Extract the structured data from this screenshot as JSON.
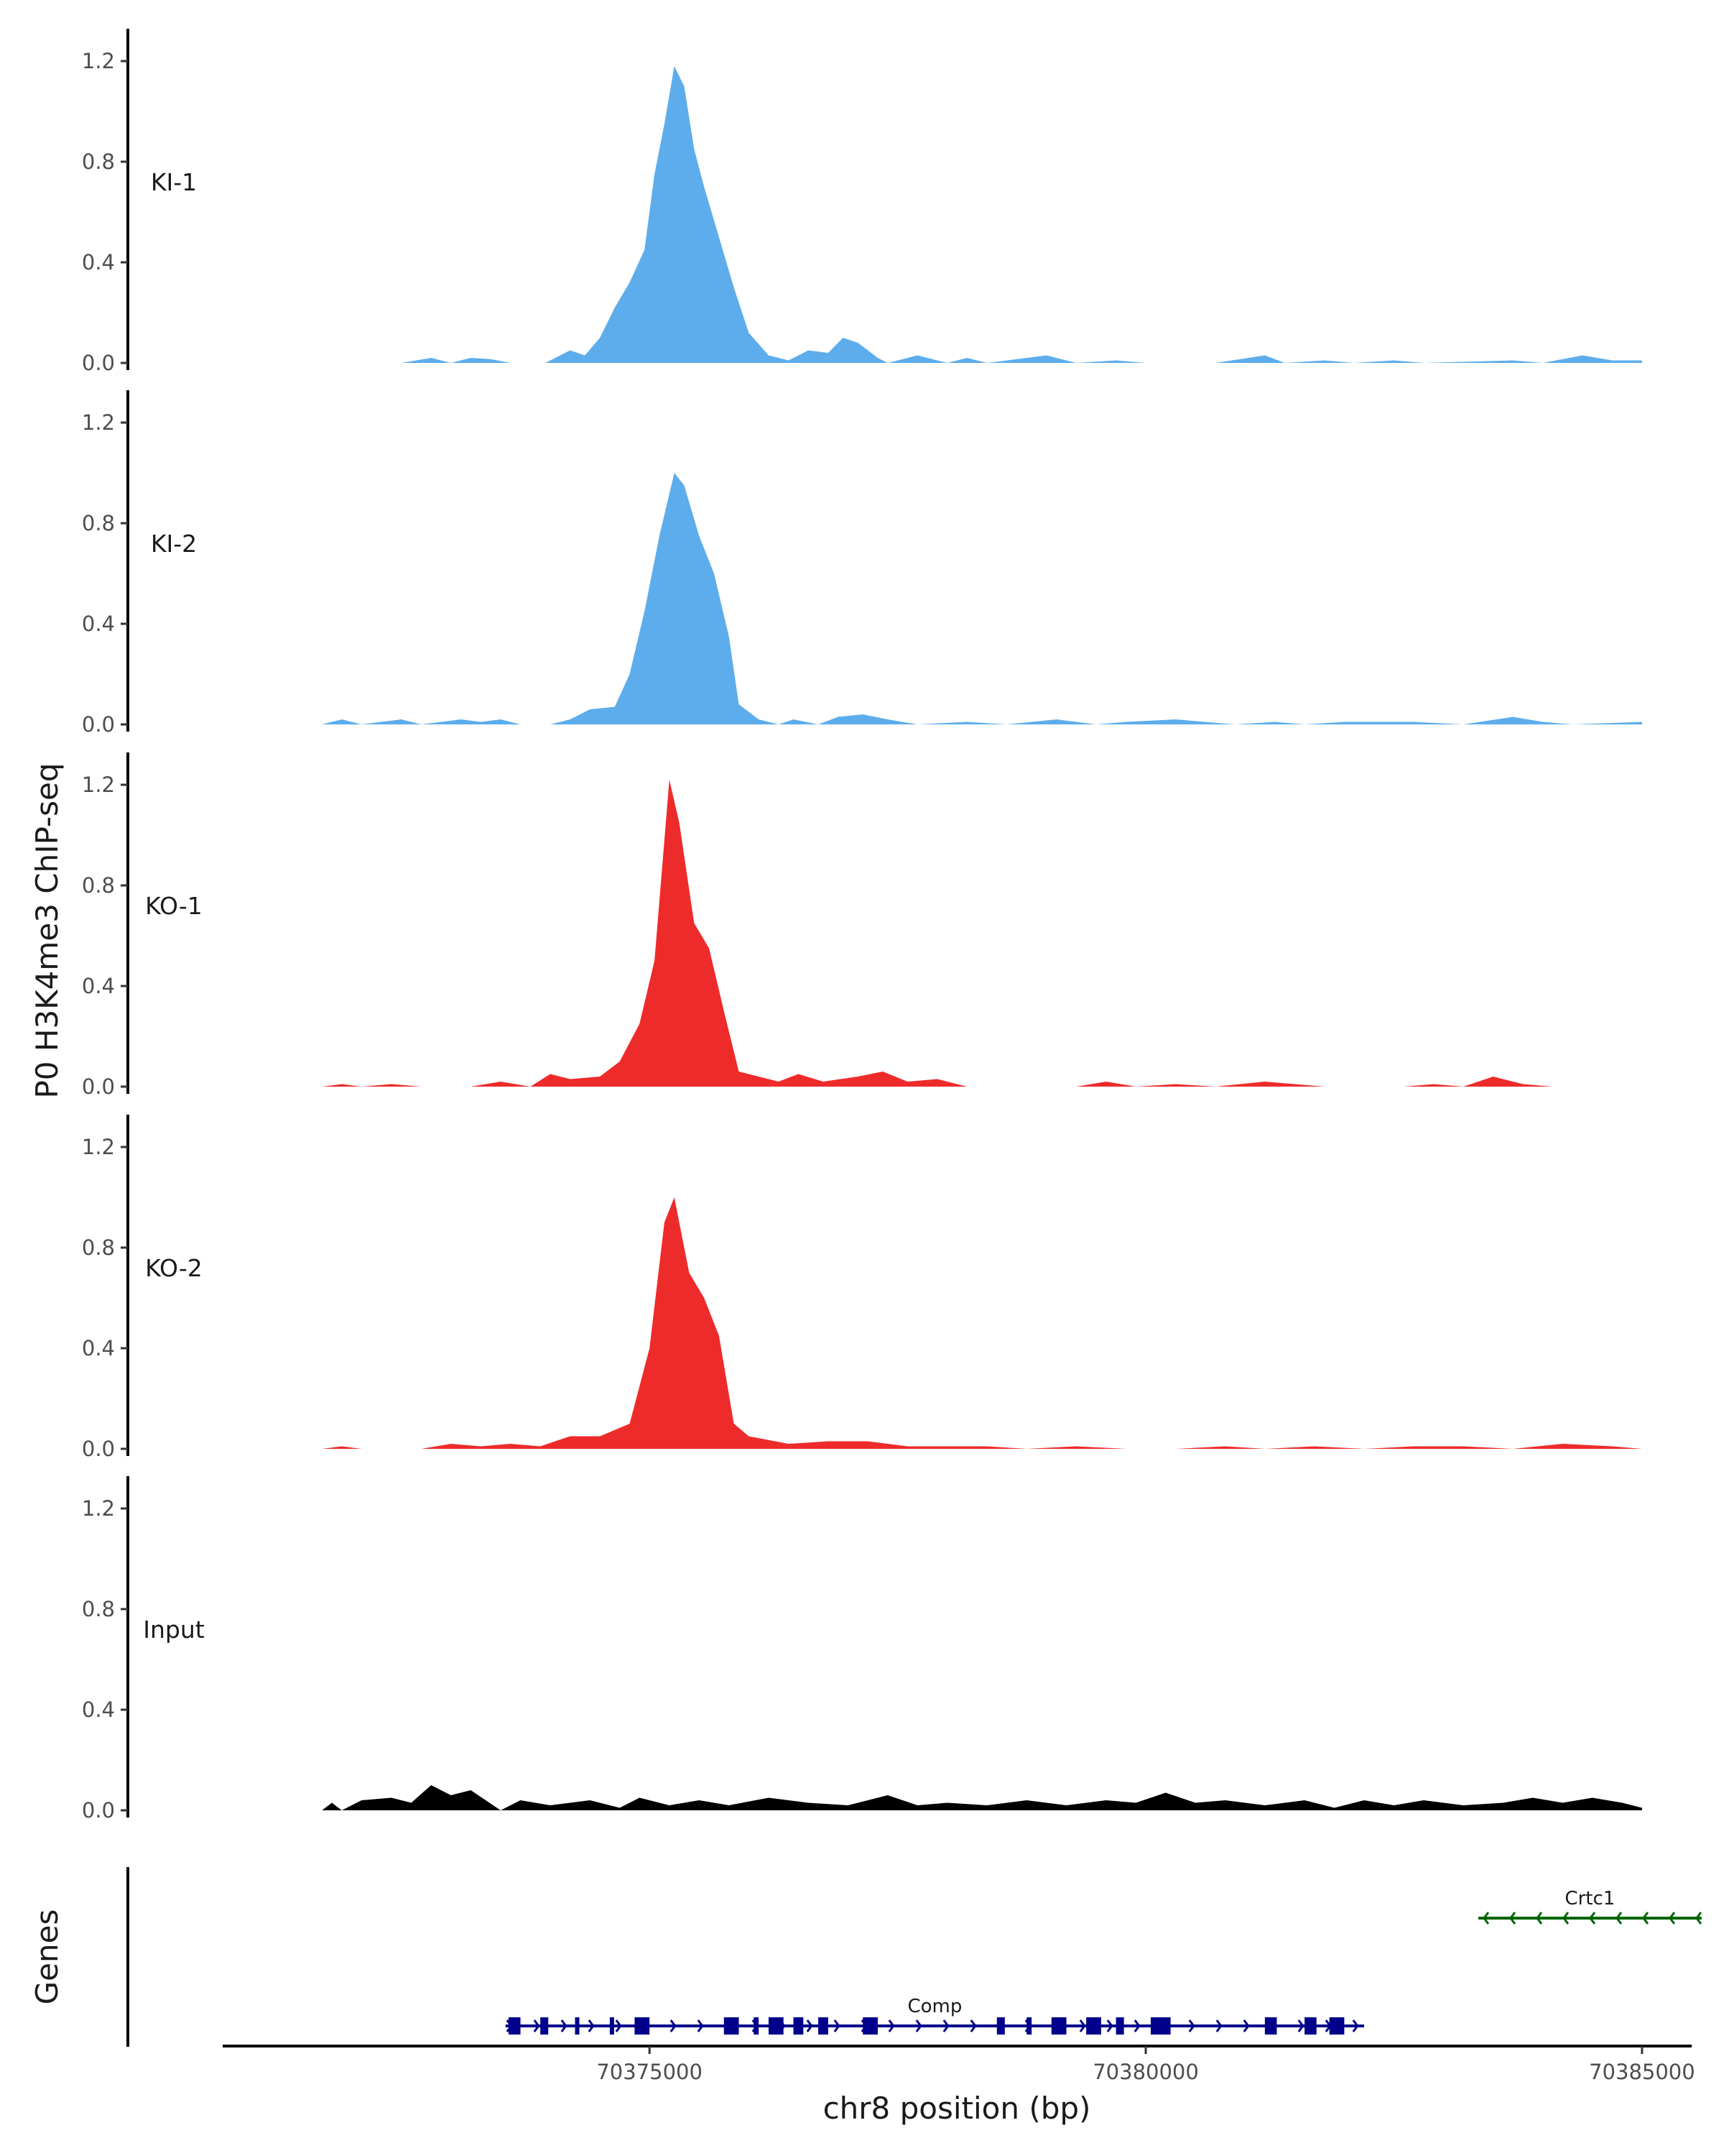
{
  "chart_data": {
    "type": "area",
    "y_axis_title": "P0 H3K4me3 ChIP-seq",
    "x_axis_title": "chr8 position (bp)",
    "genes_axis_title": "Genes",
    "ylim": [
      0,
      1.3
    ],
    "y_ticks": [
      "0.0",
      "0.4",
      "0.8",
      "1.2"
    ],
    "xlim": [
      70370700,
      70385500
    ],
    "x_ticks": [
      {
        "value": 70375000,
        "label": "70375000"
      },
      {
        "value": 70380000,
        "label": "70380000"
      },
      {
        "value": 70385000,
        "label": "70385000"
      }
    ],
    "series": [
      {
        "name": "KI-1",
        "color": "#5DADEC",
        "points": [
          [
            70372500,
            0
          ],
          [
            70372800,
            0.02
          ],
          [
            70373000,
            0
          ],
          [
            70373200,
            0.02
          ],
          [
            70373400,
            0.015
          ],
          [
            70373600,
            0
          ],
          [
            70373950,
            0
          ],
          [
            70374200,
            0.05
          ],
          [
            70374350,
            0.03
          ],
          [
            70374500,
            0.1
          ],
          [
            70374650,
            0.22
          ],
          [
            70374800,
            0.32
          ],
          [
            70374950,
            0.45
          ],
          [
            70375050,
            0.75
          ],
          [
            70375150,
            0.95
          ],
          [
            70375250,
            1.18
          ],
          [
            70375350,
            1.1
          ],
          [
            70375450,
            0.85
          ],
          [
            70375550,
            0.7
          ],
          [
            70375700,
            0.5
          ],
          [
            70375850,
            0.3
          ],
          [
            70376000,
            0.12
          ],
          [
            70376200,
            0.03
          ],
          [
            70376400,
            0.01
          ],
          [
            70376600,
            0.05
          ],
          [
            70376800,
            0.04
          ],
          [
            70376950,
            0.1
          ],
          [
            70377100,
            0.08
          ],
          [
            70377300,
            0.02
          ],
          [
            70377400,
            0
          ],
          [
            70377700,
            0.03
          ],
          [
            70378000,
            0
          ],
          [
            70378200,
            0.02
          ],
          [
            70378400,
            0
          ],
          [
            70379000,
            0.03
          ],
          [
            70379300,
            0
          ],
          [
            70379700,
            0.01
          ],
          [
            70380000,
            0
          ],
          [
            70380700,
            0
          ],
          [
            70381200,
            0.03
          ],
          [
            70381400,
            0
          ],
          [
            70381800,
            0.01
          ],
          [
            70382100,
            0
          ],
          [
            70382500,
            0.01
          ],
          [
            70382800,
            0
          ],
          [
            70383700,
            0.01
          ],
          [
            70384000,
            0
          ],
          [
            70384400,
            0.03
          ],
          [
            70384700,
            0.01
          ],
          [
            70385000,
            0.01
          ]
        ]
      },
      {
        "name": "KI-2",
        "color": "#5DADEC",
        "points": [
          [
            70371700,
            0
          ],
          [
            70371900,
            0.02
          ],
          [
            70372100,
            0
          ],
          [
            70372500,
            0.02
          ],
          [
            70372700,
            0
          ],
          [
            70373100,
            0.02
          ],
          [
            70373300,
            0.01
          ],
          [
            70373500,
            0.02
          ],
          [
            70373700,
            0
          ],
          [
            70374000,
            0
          ],
          [
            70374200,
            0.02
          ],
          [
            70374400,
            0.06
          ],
          [
            70374650,
            0.07
          ],
          [
            70374800,
            0.2
          ],
          [
            70374950,
            0.45
          ],
          [
            70375100,
            0.75
          ],
          [
            70375250,
            1.0
          ],
          [
            70375350,
            0.95
          ],
          [
            70375500,
            0.75
          ],
          [
            70375650,
            0.6
          ],
          [
            70375800,
            0.35
          ],
          [
            70375900,
            0.08
          ],
          [
            70376100,
            0.02
          ],
          [
            70376300,
            0
          ],
          [
            70376450,
            0.02
          ],
          [
            70376700,
            0
          ],
          [
            70376900,
            0.03
          ],
          [
            70377150,
            0.04
          ],
          [
            70377400,
            0.02
          ],
          [
            70377700,
            0
          ],
          [
            70378200,
            0.01
          ],
          [
            70378600,
            0
          ],
          [
            70379100,
            0.02
          ],
          [
            70379500,
            0
          ],
          [
            70379800,
            0.01
          ],
          [
            70380300,
            0.02
          ],
          [
            70380900,
            0
          ],
          [
            70381300,
            0.01
          ],
          [
            70381600,
            0
          ],
          [
            70382000,
            0.01
          ],
          [
            70382700,
            0.01
          ],
          [
            70383200,
            0
          ],
          [
            70383700,
            0.03
          ],
          [
            70384000,
            0.01
          ],
          [
            70384300,
            0
          ],
          [
            70385000,
            0.01
          ]
        ]
      },
      {
        "name": "KO-1",
        "color": "#EE2B2B",
        "points": [
          [
            70371700,
            0
          ],
          [
            70371900,
            0.01
          ],
          [
            70372100,
            0
          ],
          [
            70372400,
            0.01
          ],
          [
            70372700,
            0
          ],
          [
            70373200,
            0
          ],
          [
            70373500,
            0.02
          ],
          [
            70373800,
            0
          ],
          [
            70374000,
            0.05
          ],
          [
            70374200,
            0.03
          ],
          [
            70374500,
            0.04
          ],
          [
            70374700,
            0.1
          ],
          [
            70374900,
            0.25
          ],
          [
            70375050,
            0.5
          ],
          [
            70375200,
            1.22
          ],
          [
            70375300,
            1.05
          ],
          [
            70375450,
            0.65
          ],
          [
            70375600,
            0.55
          ],
          [
            70375750,
            0.3
          ],
          [
            70375900,
            0.06
          ],
          [
            70376100,
            0.04
          ],
          [
            70376300,
            0.02
          ],
          [
            70376500,
            0.05
          ],
          [
            70376750,
            0.02
          ],
          [
            70377100,
            0.04
          ],
          [
            70377350,
            0.06
          ],
          [
            70377600,
            0.02
          ],
          [
            70377900,
            0.03
          ],
          [
            70378200,
            0
          ],
          [
            70378700,
            0
          ],
          [
            70379300,
            0
          ],
          [
            70379600,
            0.02
          ],
          [
            70379900,
            0
          ],
          [
            70380300,
            0.01
          ],
          [
            70380700,
            0
          ],
          [
            70381200,
            0.02
          ],
          [
            70381500,
            0.01
          ],
          [
            70381800,
            0
          ],
          [
            70382600,
            0
          ],
          [
            70382900,
            0.01
          ],
          [
            70383200,
            0
          ],
          [
            70383500,
            0.04
          ],
          [
            70383800,
            0.01
          ],
          [
            70384100,
            0
          ]
        ]
      },
      {
        "name": "KO-2",
        "color": "#EE2B2B",
        "points": [
          [
            70371700,
            0
          ],
          [
            70371900,
            0.01
          ],
          [
            70372100,
            0
          ],
          [
            70372700,
            0
          ],
          [
            70373000,
            0.02
          ],
          [
            70373300,
            0.01
          ],
          [
            70373600,
            0.02
          ],
          [
            70373900,
            0.01
          ],
          [
            70374200,
            0.05
          ],
          [
            70374500,
            0.05
          ],
          [
            70374800,
            0.1
          ],
          [
            70375000,
            0.4
          ],
          [
            70375150,
            0.9
          ],
          [
            70375250,
            1.0
          ],
          [
            70375400,
            0.7
          ],
          [
            70375550,
            0.6
          ],
          [
            70375700,
            0.45
          ],
          [
            70375850,
            0.1
          ],
          [
            70376000,
            0.05
          ],
          [
            70376400,
            0.02
          ],
          [
            70376800,
            0.03
          ],
          [
            70377200,
            0.03
          ],
          [
            70377600,
            0.01
          ],
          [
            70378000,
            0.01
          ],
          [
            70378400,
            0.01
          ],
          [
            70378800,
            0
          ],
          [
            70379300,
            0.01
          ],
          [
            70379800,
            0
          ],
          [
            70380300,
            0
          ],
          [
            70380800,
            0.01
          ],
          [
            70381200,
            0
          ],
          [
            70381700,
            0.01
          ],
          [
            70382200,
            0
          ],
          [
            70382700,
            0.01
          ],
          [
            70383200,
            0.01
          ],
          [
            70383700,
            0
          ],
          [
            70384200,
            0.02
          ],
          [
            70384700,
            0.01
          ],
          [
            70385000,
            0
          ]
        ]
      },
      {
        "name": "Input",
        "color": "#000000",
        "points": [
          [
            70371700,
            0
          ],
          [
            70371800,
            0.03
          ],
          [
            70371900,
            0
          ],
          [
            70372100,
            0.04
          ],
          [
            70372400,
            0.05
          ],
          [
            70372600,
            0.03
          ],
          [
            70372800,
            0.1
          ],
          [
            70373000,
            0.06
          ],
          [
            70373200,
            0.08
          ],
          [
            70373500,
            0
          ],
          [
            70373700,
            0.04
          ],
          [
            70374000,
            0.02
          ],
          [
            70374400,
            0.04
          ],
          [
            70374700,
            0.01
          ],
          [
            70374900,
            0.05
          ],
          [
            70375200,
            0.02
          ],
          [
            70375500,
            0.04
          ],
          [
            70375800,
            0.02
          ],
          [
            70376200,
            0.05
          ],
          [
            70376600,
            0.03
          ],
          [
            70377000,
            0.02
          ],
          [
            70377400,
            0.06
          ],
          [
            70377700,
            0.02
          ],
          [
            70378000,
            0.03
          ],
          [
            70378400,
            0.02
          ],
          [
            70378800,
            0.04
          ],
          [
            70379200,
            0.02
          ],
          [
            70379600,
            0.04
          ],
          [
            70379900,
            0.03
          ],
          [
            70380200,
            0.07
          ],
          [
            70380500,
            0.03
          ],
          [
            70380800,
            0.04
          ],
          [
            70381200,
            0.02
          ],
          [
            70381600,
            0.04
          ],
          [
            70381900,
            0.01
          ],
          [
            70382200,
            0.04
          ],
          [
            70382500,
            0.02
          ],
          [
            70382800,
            0.04
          ],
          [
            70383200,
            0.02
          ],
          [
            70383600,
            0.03
          ],
          [
            70383900,
            0.05
          ],
          [
            70384200,
            0.03
          ],
          [
            70384500,
            0.05
          ],
          [
            70384800,
            0.03
          ],
          [
            70385000,
            0.01
          ]
        ]
      }
    ],
    "genes": [
      {
        "name": "Crtc1",
        "color": "#006400",
        "strand": "-",
        "row": "top",
        "start": 70383350,
        "end": 70385600,
        "exons": []
      },
      {
        "name": "Comp",
        "color": "#00008B",
        "strand": "+",
        "row": "bottom",
        "start": 70373550,
        "end": 70382200,
        "exons": [
          [
            70373580,
            70373700
          ],
          [
            70373900,
            70373980
          ],
          [
            70374250,
            70374280
          ],
          [
            70374600,
            70374640
          ],
          [
            70374850,
            70375000
          ],
          [
            70375750,
            70375900
          ],
          [
            70376050,
            70376100
          ],
          [
            70376200,
            70376350
          ],
          [
            70376450,
            70376550
          ],
          [
            70376700,
            70376800
          ],
          [
            70377150,
            70377300
          ],
          [
            70378500,
            70378580
          ],
          [
            70378800,
            70378850
          ],
          [
            70379050,
            70379200
          ],
          [
            70379400,
            70379550
          ],
          [
            70379700,
            70379780
          ],
          [
            70380050,
            70380250
          ],
          [
            70381200,
            70381320
          ],
          [
            70381600,
            70381720
          ],
          [
            70381850,
            70382000
          ]
        ]
      }
    ]
  }
}
